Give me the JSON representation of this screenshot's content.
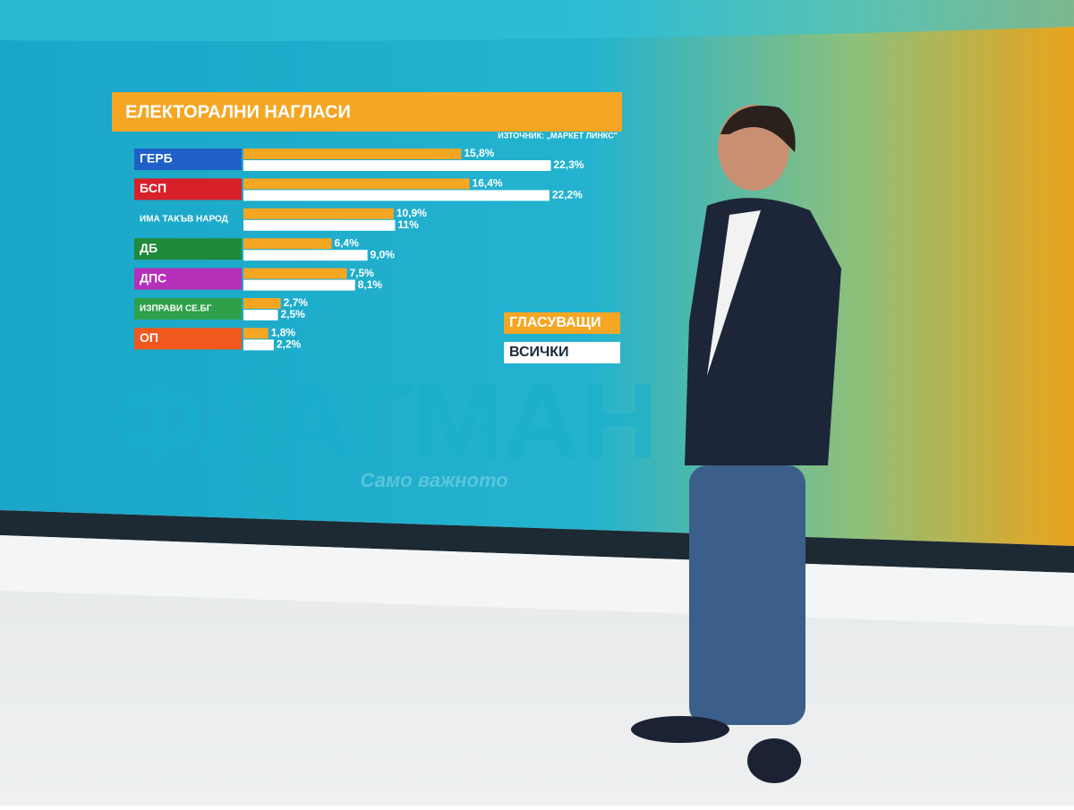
{
  "chart_data": {
    "type": "grouped-hbar",
    "title": "ЕЛЕКТОРАЛНИ НАГЛАСИ",
    "source": "ИЗТОЧНИК: „МАРКЕТ ЛИНКС\"",
    "categories": [
      "ГЕРБ",
      "БСП",
      "ИМА ТАКЪВ НАРОД",
      "ДБ",
      "ДПС",
      "ИЗПРАВИ СЕ.БГ",
      "ОП"
    ],
    "category_colors": [
      "#1f5fc8",
      "#d8202a",
      null,
      "#1e8a3a",
      "#b52fb8",
      "#2fa04a",
      "#f0581e"
    ],
    "series": [
      {
        "name": "ГЛАСУВАЩИ",
        "color": "#f5a623",
        "values": [
          15.8,
          16.4,
          10.9,
          6.4,
          7.5,
          2.7,
          1.8
        ],
        "value_labels": [
          "15,8%",
          "16,4%",
          "10,9%",
          "6,4%",
          "7,5%",
          "2,7%",
          "1,8%"
        ]
      },
      {
        "name": "ВСИЧКИ",
        "color": "#ffffff",
        "values": [
          22.3,
          22.2,
          11,
          9.0,
          8.1,
          2.5,
          2.2
        ],
        "value_labels": [
          "22,3%",
          "22,2%",
          "11%",
          "9,0%",
          "8,1%",
          "2,5%",
          "2,2%"
        ]
      }
    ]
  },
  "watermark": {
    "brand": "ФЛАГМАН",
    "slogan": "Само важното"
  }
}
